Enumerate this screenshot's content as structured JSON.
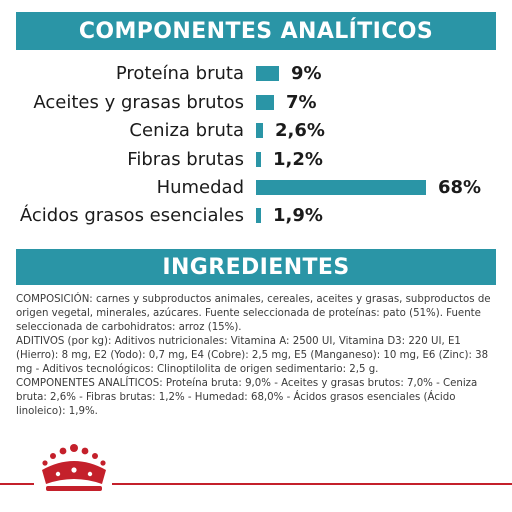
{
  "headers": {
    "analytical": "COMPONENTES ANALÍTICOS",
    "ingredients": "INGREDIENTES"
  },
  "nutrients": [
    {
      "label": "Proteína bruta",
      "value": "9%",
      "level": 9.0
    },
    {
      "label": "Aceites y grasas brutos",
      "value": "7%",
      "level": 7.0
    },
    {
      "label": "Ceniza bruta",
      "value": "2,6%",
      "level": 2.6
    },
    {
      "label": "Fibras brutas",
      "value": "1,2%",
      "level": 1.2
    },
    {
      "label": "Humedad",
      "value": "68%",
      "level": 68.0
    },
    {
      "label": "Ácidos grasos esenciales",
      "value": "1,9%",
      "level": 1.9
    }
  ],
  "ingredients_text": {
    "composition": "COMPOSICIÓN: carnes y subproductos animales, cereales, aceites y grasas, subproductos de origen vegetal, minerales, azúcares. Fuente seleccionada de proteínas: pato (51%). Fuente seleccionada de carbohidratos: arroz (15%).",
    "additives": " ADITIVOS (por kg): Aditivos nutricionales: Vitamina A: 2500 UI, Vitamina D3: 220 UI, E1 (Hierro): 8 mg, E2 (Yodo): 0,7 mg, E4 (Cobre): 2,5 mg, E5 (Manganeso): 10 mg, E6 (Zinc): 38 mg - Aditivos tecnológicos: Clinoptilolita de origen sedimentario: 2,5 g.",
    "analytical": " COMPONENTES ANALÍTICOS: Proteína bruta: 9,0% - Aceites y grasas brutos: 7,0% - Ceniza bruta: 2,6% - Fibras brutas: 1,2% - Humedad: 68,0% - Ácidos grasos esenciales (Ácido linoleico): 1,9%."
  },
  "colors": {
    "accent": "#2a95a6",
    "brand_red": "#c4202b"
  },
  "icons": {
    "logo": "royal-canin-crown-logo"
  }
}
